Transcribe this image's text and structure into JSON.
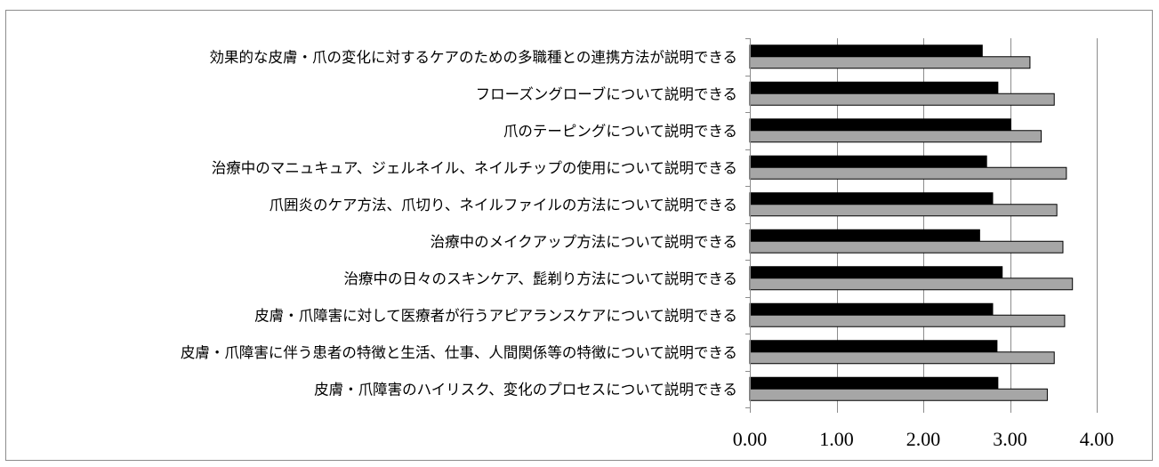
{
  "chart_data": {
    "type": "bar",
    "orientation": "horizontal",
    "categories": [
      "効果的な皮膚・爪の変化に対するケアのための多職種との連携方法が説明できる",
      "フローズングローブについて説明できる",
      "爪のテーピングについて説明できる",
      "治療中のマニュキュア、ジェルネイル、ネイルチップの使用について説明できる",
      "爪囲炎のケア方法、爪切り、ネイルファイルの方法について説明できる",
      "治療中のメイクアップ方法について説明できる",
      "治療中の日々のスキンケア、髭剃り方法について説明できる",
      "皮膚・爪障害に対して医療者が行うアピアランスケアについて説明できる",
      "皮膚・爪障害に伴う患者の特徴と生活、仕事、人間関係等の特徴について説明できる",
      "皮膚・爪障害のハイリスク、変化のプロセスについて説明できる"
    ],
    "series": [
      {
        "color": "#000000",
        "values": [
          2.68,
          2.86,
          3.01,
          2.73,
          2.8,
          2.65,
          2.91,
          2.8,
          2.85,
          2.86
        ]
      },
      {
        "color": "#a6a6a6",
        "values": [
          3.23,
          3.51,
          3.36,
          3.65,
          3.54,
          3.61,
          3.72,
          3.63,
          3.51,
          3.43
        ]
      }
    ],
    "xlim": [
      0,
      4
    ],
    "xticks": [
      "0.00",
      "1.00",
      "2.00",
      "3.00",
      "4.00"
    ],
    "grid": true,
    "title": "",
    "xlabel": "",
    "ylabel": ""
  }
}
